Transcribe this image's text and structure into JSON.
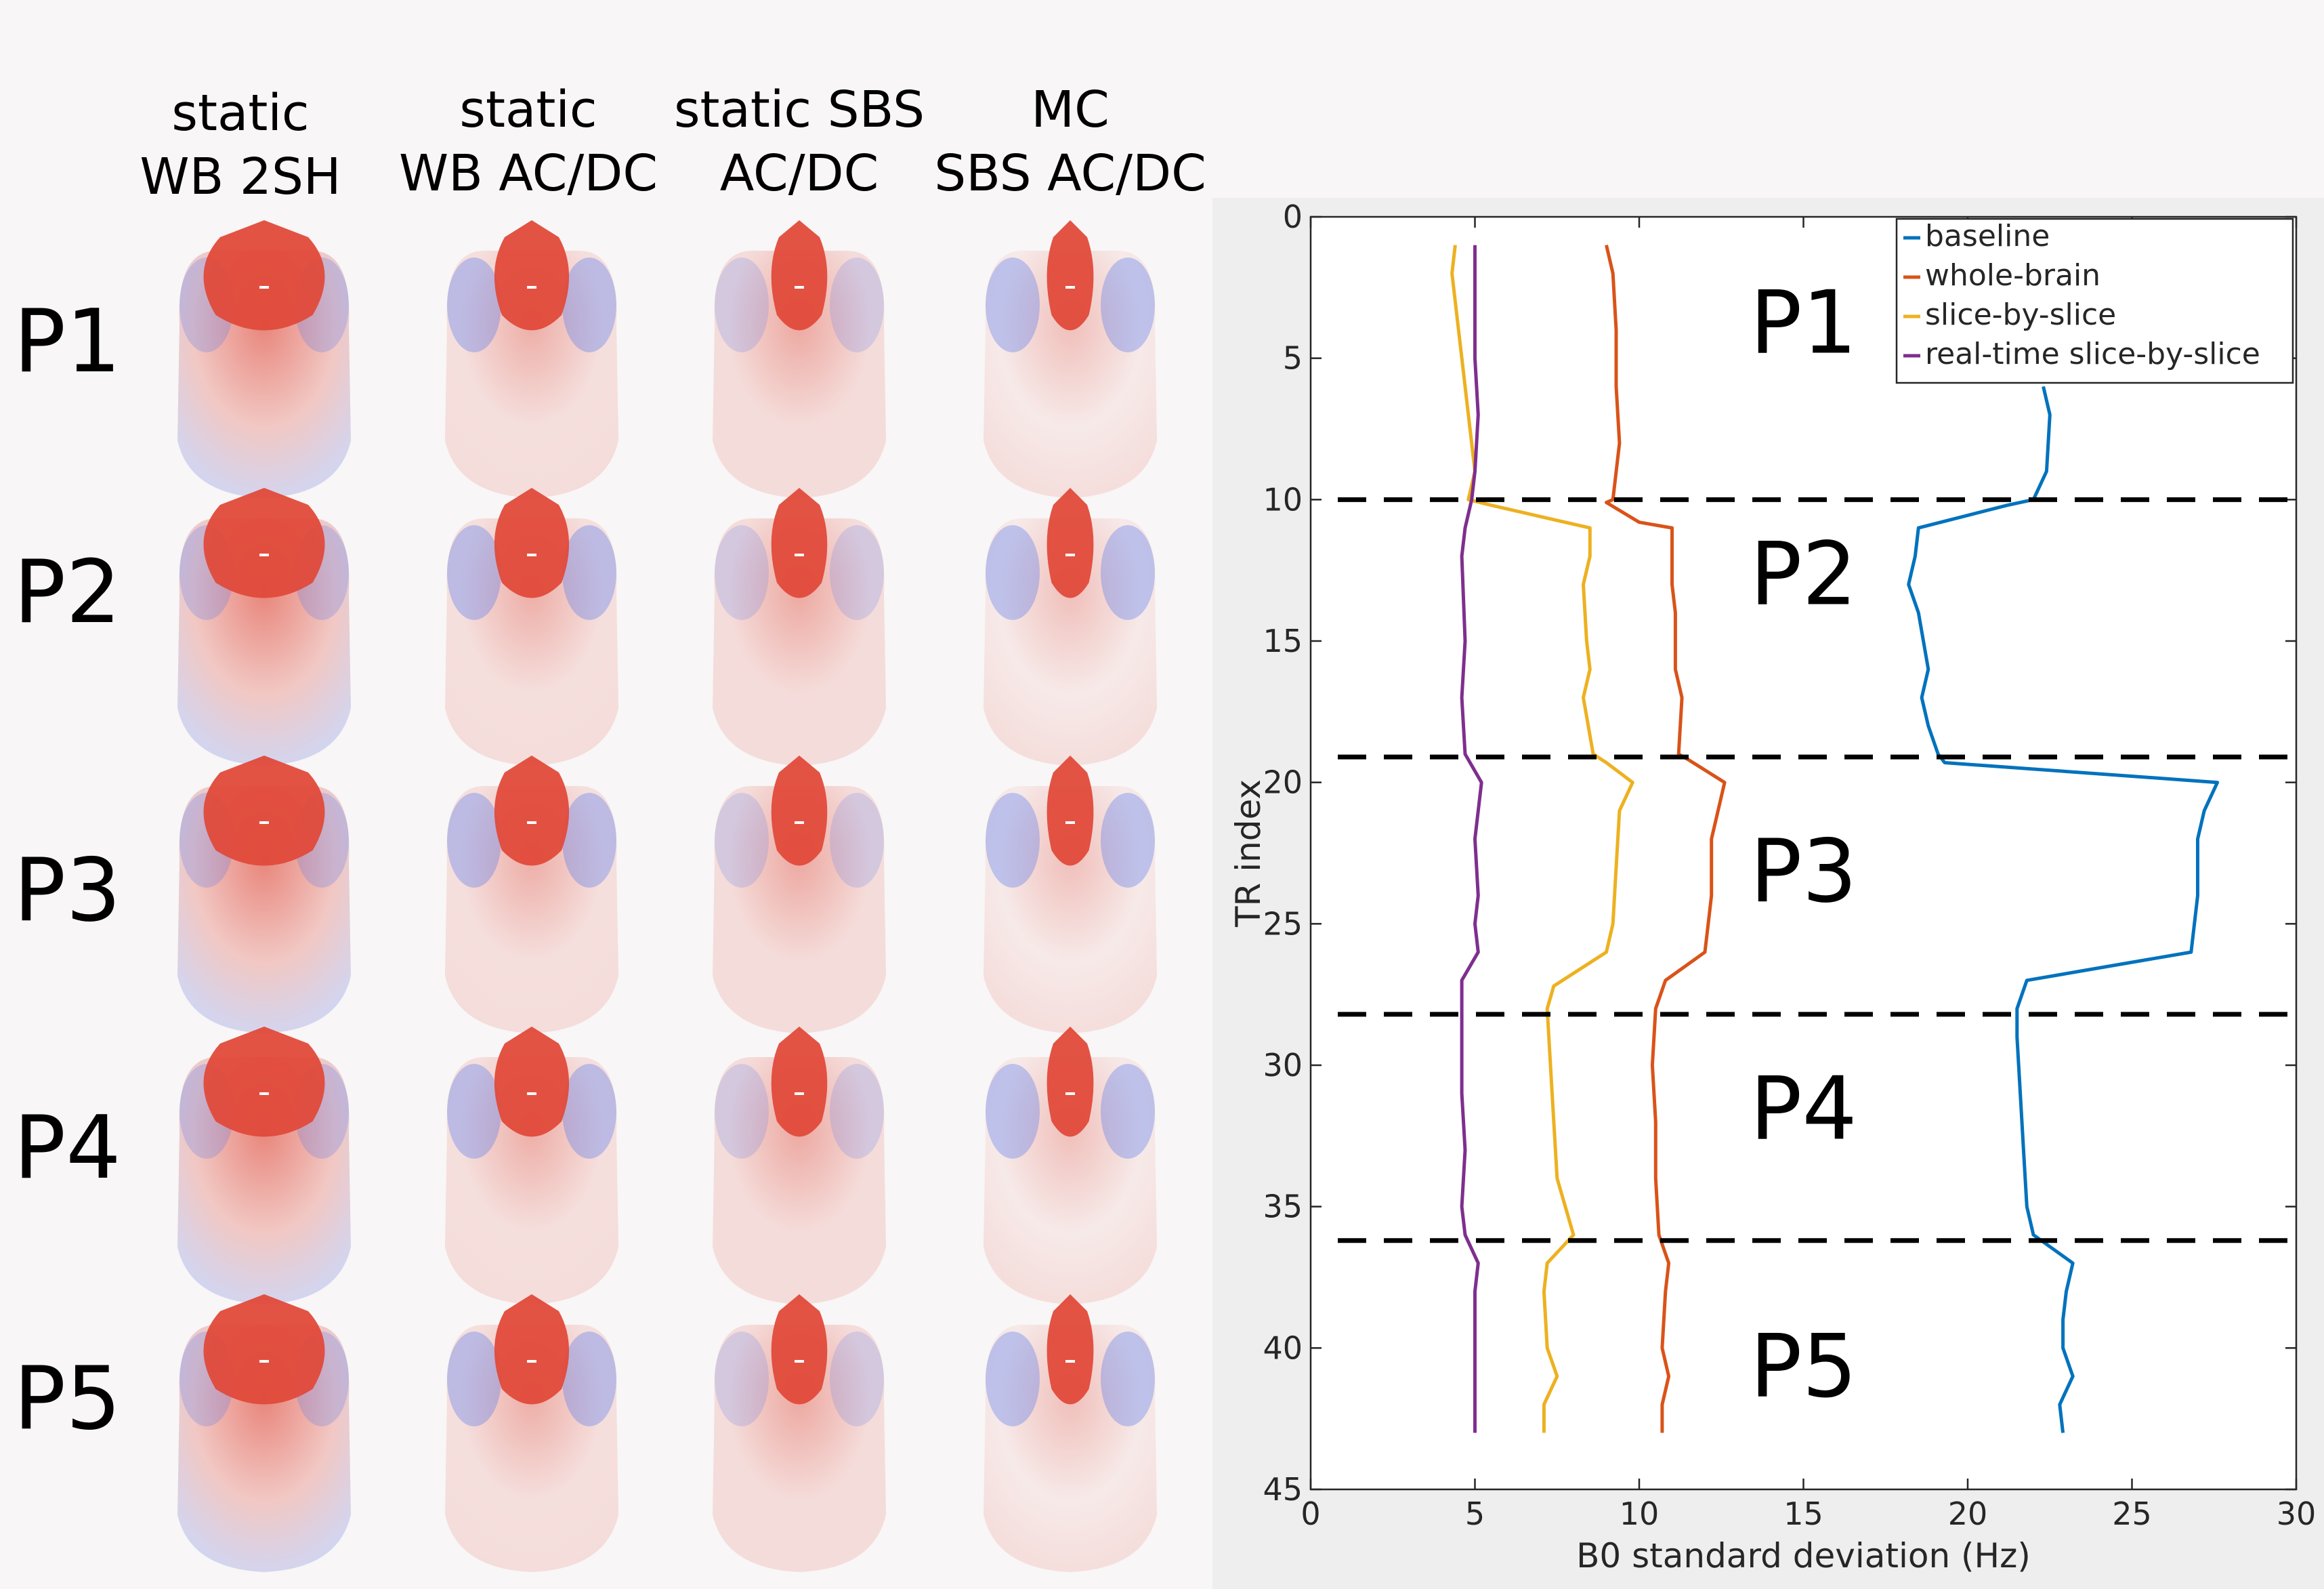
{
  "column_headers": [
    "static\nWB 2SH",
    "static\nWB AC/DC",
    "static SBS\nAC/DC",
    "MC\nSBS AC/DC"
  ],
  "row_labels": [
    "P1",
    "P2",
    "P3",
    "P4",
    "P5"
  ],
  "colors": {
    "baseline": "#0072bd",
    "whole_brain": "#d95319",
    "slice_by_slice": "#edb120",
    "realtime_slice_by_slice": "#7e2f8e",
    "map_positive": "#e04a3a",
    "map_negative": "#5577ee"
  },
  "chart_data": {
    "type": "line",
    "xlabel": "B0 standard deviation (Hz)",
    "ylabel": "TR index",
    "xlim": [
      0,
      30
    ],
    "ylim": [
      0,
      45
    ],
    "y_reversed": true,
    "xticks": [
      0,
      5,
      10,
      15,
      20,
      25,
      30
    ],
    "yticks": [
      0,
      5,
      10,
      15,
      20,
      25,
      30,
      35,
      40,
      45
    ],
    "grid": false,
    "legend_position": "top-right",
    "region_boundaries": [
      10,
      19.1,
      28.2,
      36.2
    ],
    "region_labels": [
      {
        "text": "P1",
        "x": 15,
        "y": 4.8
      },
      {
        "text": "P2",
        "x": 15,
        "y": 13.7
      },
      {
        "text": "P3",
        "x": 15,
        "y": 24.2
      },
      {
        "text": "P4",
        "x": 15,
        "y": 32.6
      },
      {
        "text": "P5",
        "x": 15,
        "y": 41.7
      }
    ],
    "series": [
      {
        "name": "baseline",
        "points": [
          [
            22.3,
            6
          ],
          [
            22.5,
            7
          ],
          [
            22.4,
            9
          ],
          [
            22.0,
            10
          ],
          [
            21.2,
            10.2
          ],
          [
            18.5,
            11
          ],
          [
            18.4,
            12
          ],
          [
            18.2,
            13
          ],
          [
            18.5,
            14
          ],
          [
            18.8,
            16
          ],
          [
            18.6,
            17
          ],
          [
            18.8,
            18
          ],
          [
            19.1,
            19
          ],
          [
            19.3,
            19.3
          ],
          [
            27.6,
            20
          ],
          [
            27.2,
            21
          ],
          [
            27.0,
            22
          ],
          [
            27.0,
            24
          ],
          [
            26.8,
            26
          ],
          [
            21.8,
            27
          ],
          [
            21.5,
            28
          ],
          [
            21.5,
            29
          ],
          [
            21.6,
            31
          ],
          [
            21.7,
            33
          ],
          [
            21.8,
            35
          ],
          [
            22.0,
            36
          ],
          [
            23.2,
            37
          ],
          [
            23.0,
            38
          ],
          [
            22.9,
            39
          ],
          [
            22.9,
            40
          ],
          [
            23.2,
            41
          ],
          [
            22.8,
            42
          ],
          [
            22.9,
            43
          ]
        ]
      },
      {
        "name": "whole-brain",
        "points": [
          [
            9.0,
            1
          ],
          [
            9.2,
            2
          ],
          [
            9.3,
            4
          ],
          [
            9.3,
            6
          ],
          [
            9.4,
            8
          ],
          [
            9.2,
            10
          ],
          [
            9.0,
            10.1
          ],
          [
            10.0,
            10.8
          ],
          [
            11.0,
            11
          ],
          [
            11.0,
            13
          ],
          [
            11.1,
            14
          ],
          [
            11.1,
            16
          ],
          [
            11.3,
            17
          ],
          [
            11.2,
            19
          ],
          [
            11.5,
            19.2
          ],
          [
            12.6,
            20
          ],
          [
            12.4,
            21
          ],
          [
            12.2,
            22
          ],
          [
            12.2,
            24
          ],
          [
            12.1,
            25
          ],
          [
            12.0,
            26
          ],
          [
            10.8,
            27
          ],
          [
            10.5,
            28
          ],
          [
            10.4,
            30
          ],
          [
            10.5,
            32
          ],
          [
            10.5,
            34
          ],
          [
            10.6,
            36
          ],
          [
            10.9,
            37
          ],
          [
            10.8,
            38
          ],
          [
            10.7,
            40
          ],
          [
            10.9,
            41
          ],
          [
            10.7,
            42
          ],
          [
            10.7,
            43
          ]
        ]
      },
      {
        "name": "slice-by-slice",
        "points": [
          [
            4.4,
            1
          ],
          [
            4.3,
            2
          ],
          [
            4.5,
            4
          ],
          [
            4.8,
            7
          ],
          [
            5.0,
            9
          ],
          [
            4.8,
            10
          ],
          [
            5.5,
            10.2
          ],
          [
            8.5,
            11
          ],
          [
            8.5,
            12
          ],
          [
            8.3,
            13
          ],
          [
            8.4,
            15
          ],
          [
            8.5,
            16
          ],
          [
            8.3,
            17
          ],
          [
            8.6,
            19
          ],
          [
            9.0,
            19.3
          ],
          [
            9.8,
            20
          ],
          [
            9.4,
            21
          ],
          [
            9.3,
            23
          ],
          [
            9.2,
            25
          ],
          [
            9.0,
            26
          ],
          [
            7.4,
            27.2
          ],
          [
            7.2,
            28
          ],
          [
            7.3,
            30
          ],
          [
            7.4,
            32
          ],
          [
            7.5,
            34
          ],
          [
            8.0,
            36
          ],
          [
            7.2,
            37
          ],
          [
            7.1,
            38
          ],
          [
            7.2,
            40
          ],
          [
            7.5,
            41
          ],
          [
            7.1,
            42
          ],
          [
            7.1,
            43
          ]
        ]
      },
      {
        "name": "real-time slice-by-slice",
        "points": [
          [
            5.0,
            1
          ],
          [
            5.0,
            3
          ],
          [
            5.0,
            5
          ],
          [
            5.1,
            7
          ],
          [
            5.0,
            9
          ],
          [
            4.9,
            10
          ],
          [
            4.7,
            11
          ],
          [
            4.6,
            12
          ],
          [
            4.7,
            15
          ],
          [
            4.6,
            17
          ],
          [
            4.7,
            19
          ],
          [
            5.2,
            20
          ],
          [
            5.0,
            22
          ],
          [
            5.1,
            24
          ],
          [
            5.0,
            25
          ],
          [
            5.1,
            26
          ],
          [
            4.6,
            27
          ],
          [
            4.6,
            29
          ],
          [
            4.6,
            31
          ],
          [
            4.7,
            33
          ],
          [
            4.6,
            35
          ],
          [
            4.7,
            36
          ],
          [
            5.1,
            37
          ],
          [
            5.0,
            38
          ],
          [
            5.0,
            40
          ],
          [
            5.0,
            42
          ],
          [
            5.0,
            43
          ]
        ]
      }
    ]
  }
}
